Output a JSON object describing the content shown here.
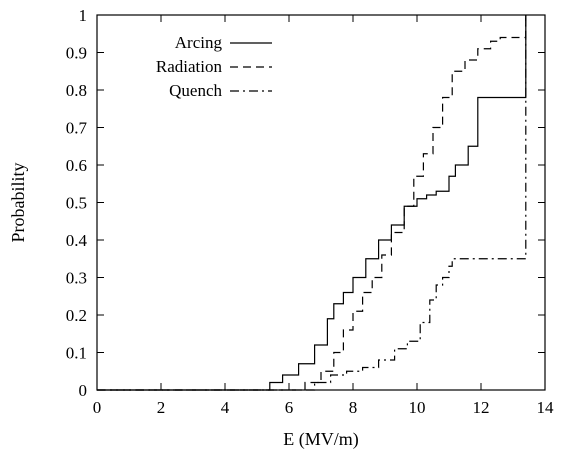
{
  "chart_data": {
    "type": "line",
    "xlabel": "E (MV/m)",
    "ylabel": "Probability",
    "xlim": [
      0,
      14
    ],
    "ylim": [
      0,
      1
    ],
    "xticks": [
      "0",
      "2",
      "4",
      "6",
      "8",
      "10",
      "12",
      "14"
    ],
    "yticks": [
      "0",
      "0.1",
      "0.2",
      "0.3",
      "0.4",
      "0.5",
      "0.6",
      "0.7",
      "0.8",
      "0.9",
      "1"
    ],
    "grid": false,
    "legend_position": "top-left",
    "series": [
      {
        "name": "Arcing",
        "style": "solid",
        "x": [
          0,
          4.9,
          5.4,
          5.8,
          6.3,
          6.8,
          7.2,
          7.4,
          7.7,
          8.0,
          8.4,
          8.8,
          9.2,
          9.6,
          10.0,
          10.3,
          10.6,
          11.0,
          11.2,
          11.6,
          11.9,
          12.0,
          13.4,
          13.4
        ],
        "y": [
          0,
          0.0,
          0.02,
          0.04,
          0.07,
          0.12,
          0.19,
          0.23,
          0.26,
          0.3,
          0.35,
          0.4,
          0.44,
          0.49,
          0.51,
          0.52,
          0.53,
          0.57,
          0.6,
          0.65,
          0.78,
          0.78,
          0.78,
          1.0
        ]
      },
      {
        "name": "Radiation",
        "style": "dashed",
        "x": [
          0,
          6.0,
          6.5,
          7.0,
          7.4,
          7.7,
          8.0,
          8.3,
          8.6,
          8.9,
          9.2,
          9.6,
          9.9,
          10.2,
          10.5,
          10.8,
          11.1,
          11.5,
          11.9,
          12.3,
          12.6,
          13.4,
          13.4
        ],
        "y": [
          0,
          0.0,
          0.02,
          0.05,
          0.1,
          0.16,
          0.21,
          0.26,
          0.3,
          0.36,
          0.42,
          0.49,
          0.57,
          0.63,
          0.7,
          0.78,
          0.85,
          0.88,
          0.91,
          0.93,
          0.94,
          0.94,
          1.0
        ]
      },
      {
        "name": "Quench",
        "style": "dash-dot",
        "x": [
          0,
          6.2,
          6.8,
          7.3,
          7.8,
          8.3,
          8.8,
          9.3,
          9.7,
          10.1,
          10.4,
          10.6,
          10.8,
          11.0,
          11.1,
          13.4,
          13.4
        ],
        "y": [
          0,
          0.0,
          0.02,
          0.04,
          0.05,
          0.06,
          0.08,
          0.11,
          0.13,
          0.18,
          0.24,
          0.28,
          0.3,
          0.33,
          0.35,
          0.35,
          1.0
        ]
      }
    ]
  }
}
